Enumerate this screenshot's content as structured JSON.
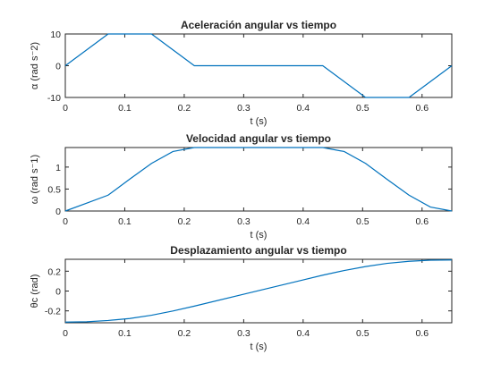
{
  "colors": {
    "series": "#0072bd",
    "axis": "#262626",
    "background": "#ffffff"
  },
  "chart_data": [
    {
      "type": "line",
      "title": "Aceleración angular vs tiempo",
      "xlabel": "t (s)",
      "ylabel": "α (rad s⁻2)",
      "xlim": [
        0,
        0.65
      ],
      "ylim": [
        -10,
        10
      ],
      "xticks": [
        0,
        0.1,
        0.2,
        0.3,
        0.4,
        0.5,
        0.6
      ],
      "xtick_labels": [
        "0",
        "0.1",
        "0.2",
        "0.3",
        "0.4",
        "0.5",
        "0.6"
      ],
      "yticks": [
        -10,
        0,
        10
      ],
      "ytick_labels": [
        "-10",
        "0",
        "10"
      ],
      "grid": false,
      "series": [
        {
          "x": [
            0,
            0.072,
            0.145,
            0.217,
            0.433,
            0.505,
            0.578,
            0.65
          ],
          "y": [
            0,
            10,
            10,
            0,
            0,
            -10,
            -10,
            0
          ]
        }
      ]
    },
    {
      "type": "line",
      "title": "Velocidad angular vs tiempo",
      "xlabel": "t (s)",
      "ylabel": "ω (rad s⁻1)",
      "xlim": [
        0,
        0.65
      ],
      "ylim": [
        0,
        1.445
      ],
      "xticks": [
        0,
        0.1,
        0.2,
        0.3,
        0.4,
        0.5,
        0.6
      ],
      "xtick_labels": [
        "0",
        "0.1",
        "0.2",
        "0.3",
        "0.4",
        "0.5",
        "0.6"
      ],
      "yticks": [
        0,
        0.5,
        1
      ],
      "ytick_labels": [
        "0",
        "0.5",
        "1"
      ],
      "grid": false,
      "series": [
        {
          "x": [
            0,
            0.036,
            0.072,
            0.108,
            0.145,
            0.181,
            0.217,
            0.3,
            0.4,
            0.433,
            0.469,
            0.505,
            0.541,
            0.578,
            0.614,
            0.65
          ],
          "y": [
            0,
            0.18,
            0.361,
            0.722,
            1.084,
            1.354,
            1.445,
            1.445,
            1.445,
            1.445,
            1.354,
            1.084,
            0.722,
            0.361,
            0.09,
            0
          ]
        }
      ]
    },
    {
      "type": "line",
      "title": "Desplazamiento angular vs tiempo",
      "xlabel": "t (s)",
      "ylabel": "θc (rad)",
      "xlim": [
        0,
        0.65
      ],
      "ylim": [
        -0.32,
        0.32
      ],
      "xticks": [
        0,
        0.1,
        0.2,
        0.3,
        0.4,
        0.5,
        0.6
      ],
      "xtick_labels": [
        "0",
        "0.1",
        "0.2",
        "0.3",
        "0.4",
        "0.5",
        "0.6"
      ],
      "yticks": [
        -0.2,
        0,
        0.2
      ],
      "ytick_labels": [
        "-0.2",
        "0",
        "0.2"
      ],
      "grid": false,
      "series": [
        {
          "x": [
            0,
            0.036,
            0.072,
            0.108,
            0.145,
            0.181,
            0.217,
            0.3,
            0.4,
            0.433,
            0.469,
            0.505,
            0.541,
            0.578,
            0.614,
            0.65
          ],
          "y": [
            -0.313,
            -0.31,
            -0.297,
            -0.277,
            -0.244,
            -0.201,
            -0.152,
            -0.032,
            0.112,
            0.16,
            0.207,
            0.247,
            0.279,
            0.3,
            0.311,
            0.313
          ]
        }
      ]
    }
  ]
}
